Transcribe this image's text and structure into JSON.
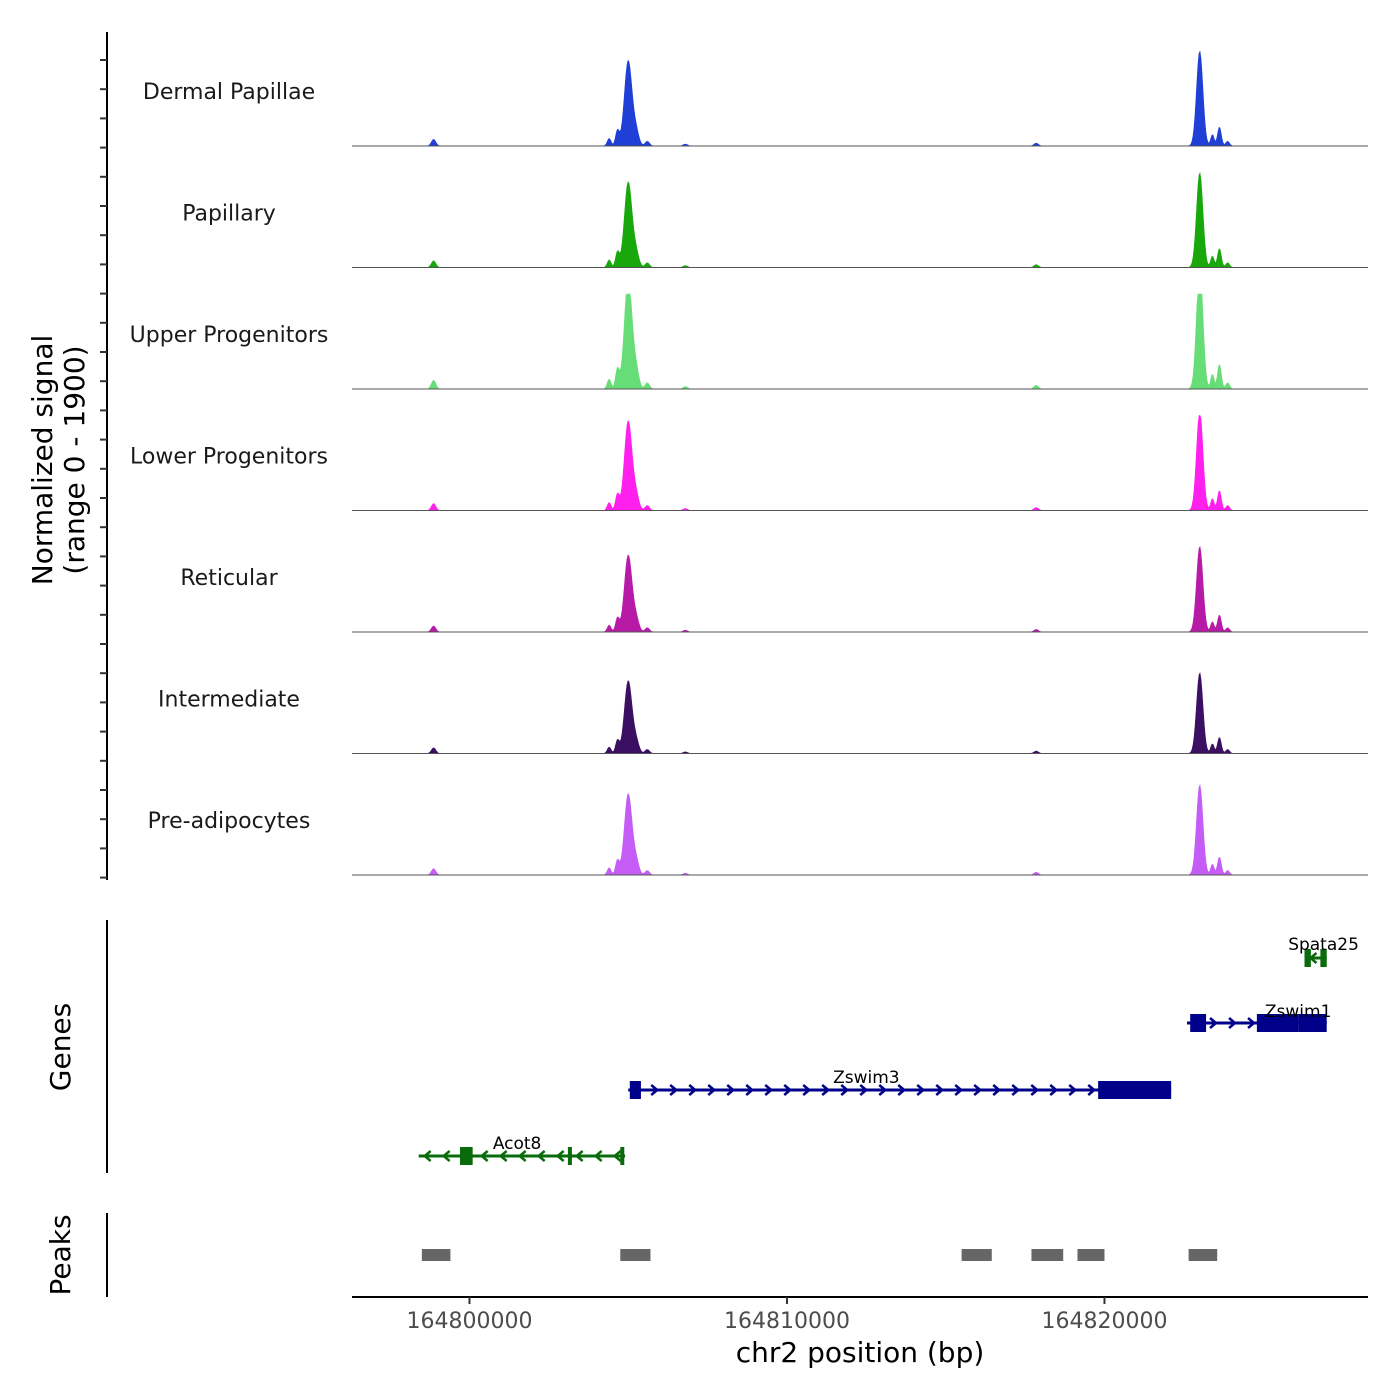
{
  "chart_data": {
    "type": "area",
    "title": "",
    "chromosome": "chr2",
    "xlabel": "chr2 position (bp)",
    "ylabel_line1": "Normalized signal",
    "ylabel_line2": "(range 0 - 1900)",
    "xlim": [
      164796300,
      164828300
    ],
    "ylim": [
      0,
      1900
    ],
    "x_ticks": [
      164800000,
      164810000,
      164820000
    ],
    "x_tick_labels": [
      "164800000",
      "164810000",
      "164820000"
    ],
    "peak_profile": [
      {
        "center": 164798870,
        "height": 0.07,
        "width": 70
      },
      {
        "center": 164804400,
        "height": 0.08,
        "width": 60
      },
      {
        "center": 164804660,
        "height": 0.16,
        "width": 60
      },
      {
        "center": 164805000,
        "height": 0.9,
        "width": 120
      },
      {
        "center": 164805250,
        "height": 0.14,
        "width": 90
      },
      {
        "center": 164805600,
        "height": 0.05,
        "width": 70
      },
      {
        "center": 164806800,
        "height": 0.02,
        "width": 70
      },
      {
        "center": 164817850,
        "height": 0.03,
        "width": 70
      },
      {
        "center": 164823000,
        "height": 1.0,
        "width": 100
      },
      {
        "center": 164823400,
        "height": 0.12,
        "width": 55
      },
      {
        "center": 164823620,
        "height": 0.2,
        "width": 60
      },
      {
        "center": 164823880,
        "height": 0.05,
        "width": 60
      }
    ],
    "series": [
      {
        "name": "Dermal Papillae",
        "color": "#1f3fd6",
        "peak_scale": 1.0
      },
      {
        "name": "Papillary",
        "color": "#18a80c",
        "peak_scale": 1.0
      },
      {
        "name": "Upper Progenitors",
        "color": "#66dd77",
        "peak_scale": 1.3
      },
      {
        "name": "Lower Progenitors",
        "color": "#ff20ee",
        "peak_scale": 1.05
      },
      {
        "name": "Reticular",
        "color": "#b81aa8",
        "peak_scale": 0.9
      },
      {
        "name": "Intermediate",
        "color": "#3b0f62",
        "peak_scale": 0.85
      },
      {
        "name": "Pre-adipocytes",
        "color": "#c45cf5",
        "peak_scale": 0.95
      }
    ],
    "genes_label": "Genes",
    "genes": [
      {
        "name": "Spata25",
        "strand": "-",
        "color": "#0a6b0a",
        "start": 164826300,
        "end": 164827000,
        "exons": [
          [
            164826300,
            164826500
          ],
          [
            164826800,
            164827000
          ]
        ]
      },
      {
        "name": "Zswim1",
        "strand": "+",
        "color": "#00008b",
        "start": 164822600,
        "end": 164827000,
        "exons": [
          [
            164822700,
            164823200
          ],
          [
            164824800,
            164826100
          ],
          [
            164826100,
            164827000
          ]
        ]
      },
      {
        "name": "Zswim3",
        "strand": "+",
        "color": "#00008b",
        "start": 164805000,
        "end": 164822100,
        "exons": [
          [
            164805050,
            164805400
          ],
          [
            164819800,
            164822100
          ]
        ]
      },
      {
        "name": "Acot8",
        "strand": "-",
        "color": "#0a6b0a",
        "start": 164798400,
        "end": 164804900,
        "exons": [
          [
            164799700,
            164800100
          ],
          [
            164803100,
            164803200
          ],
          [
            164804750,
            164804850
          ]
        ]
      }
    ],
    "peaks_label": "Peaks",
    "peaks": [
      [
        164798500,
        164799400
      ],
      [
        164804750,
        164805700
      ],
      [
        164815500,
        164816450
      ],
      [
        164817700,
        164818700
      ],
      [
        164819150,
        164820000
      ],
      [
        164822650,
        164823550
      ]
    ]
  }
}
